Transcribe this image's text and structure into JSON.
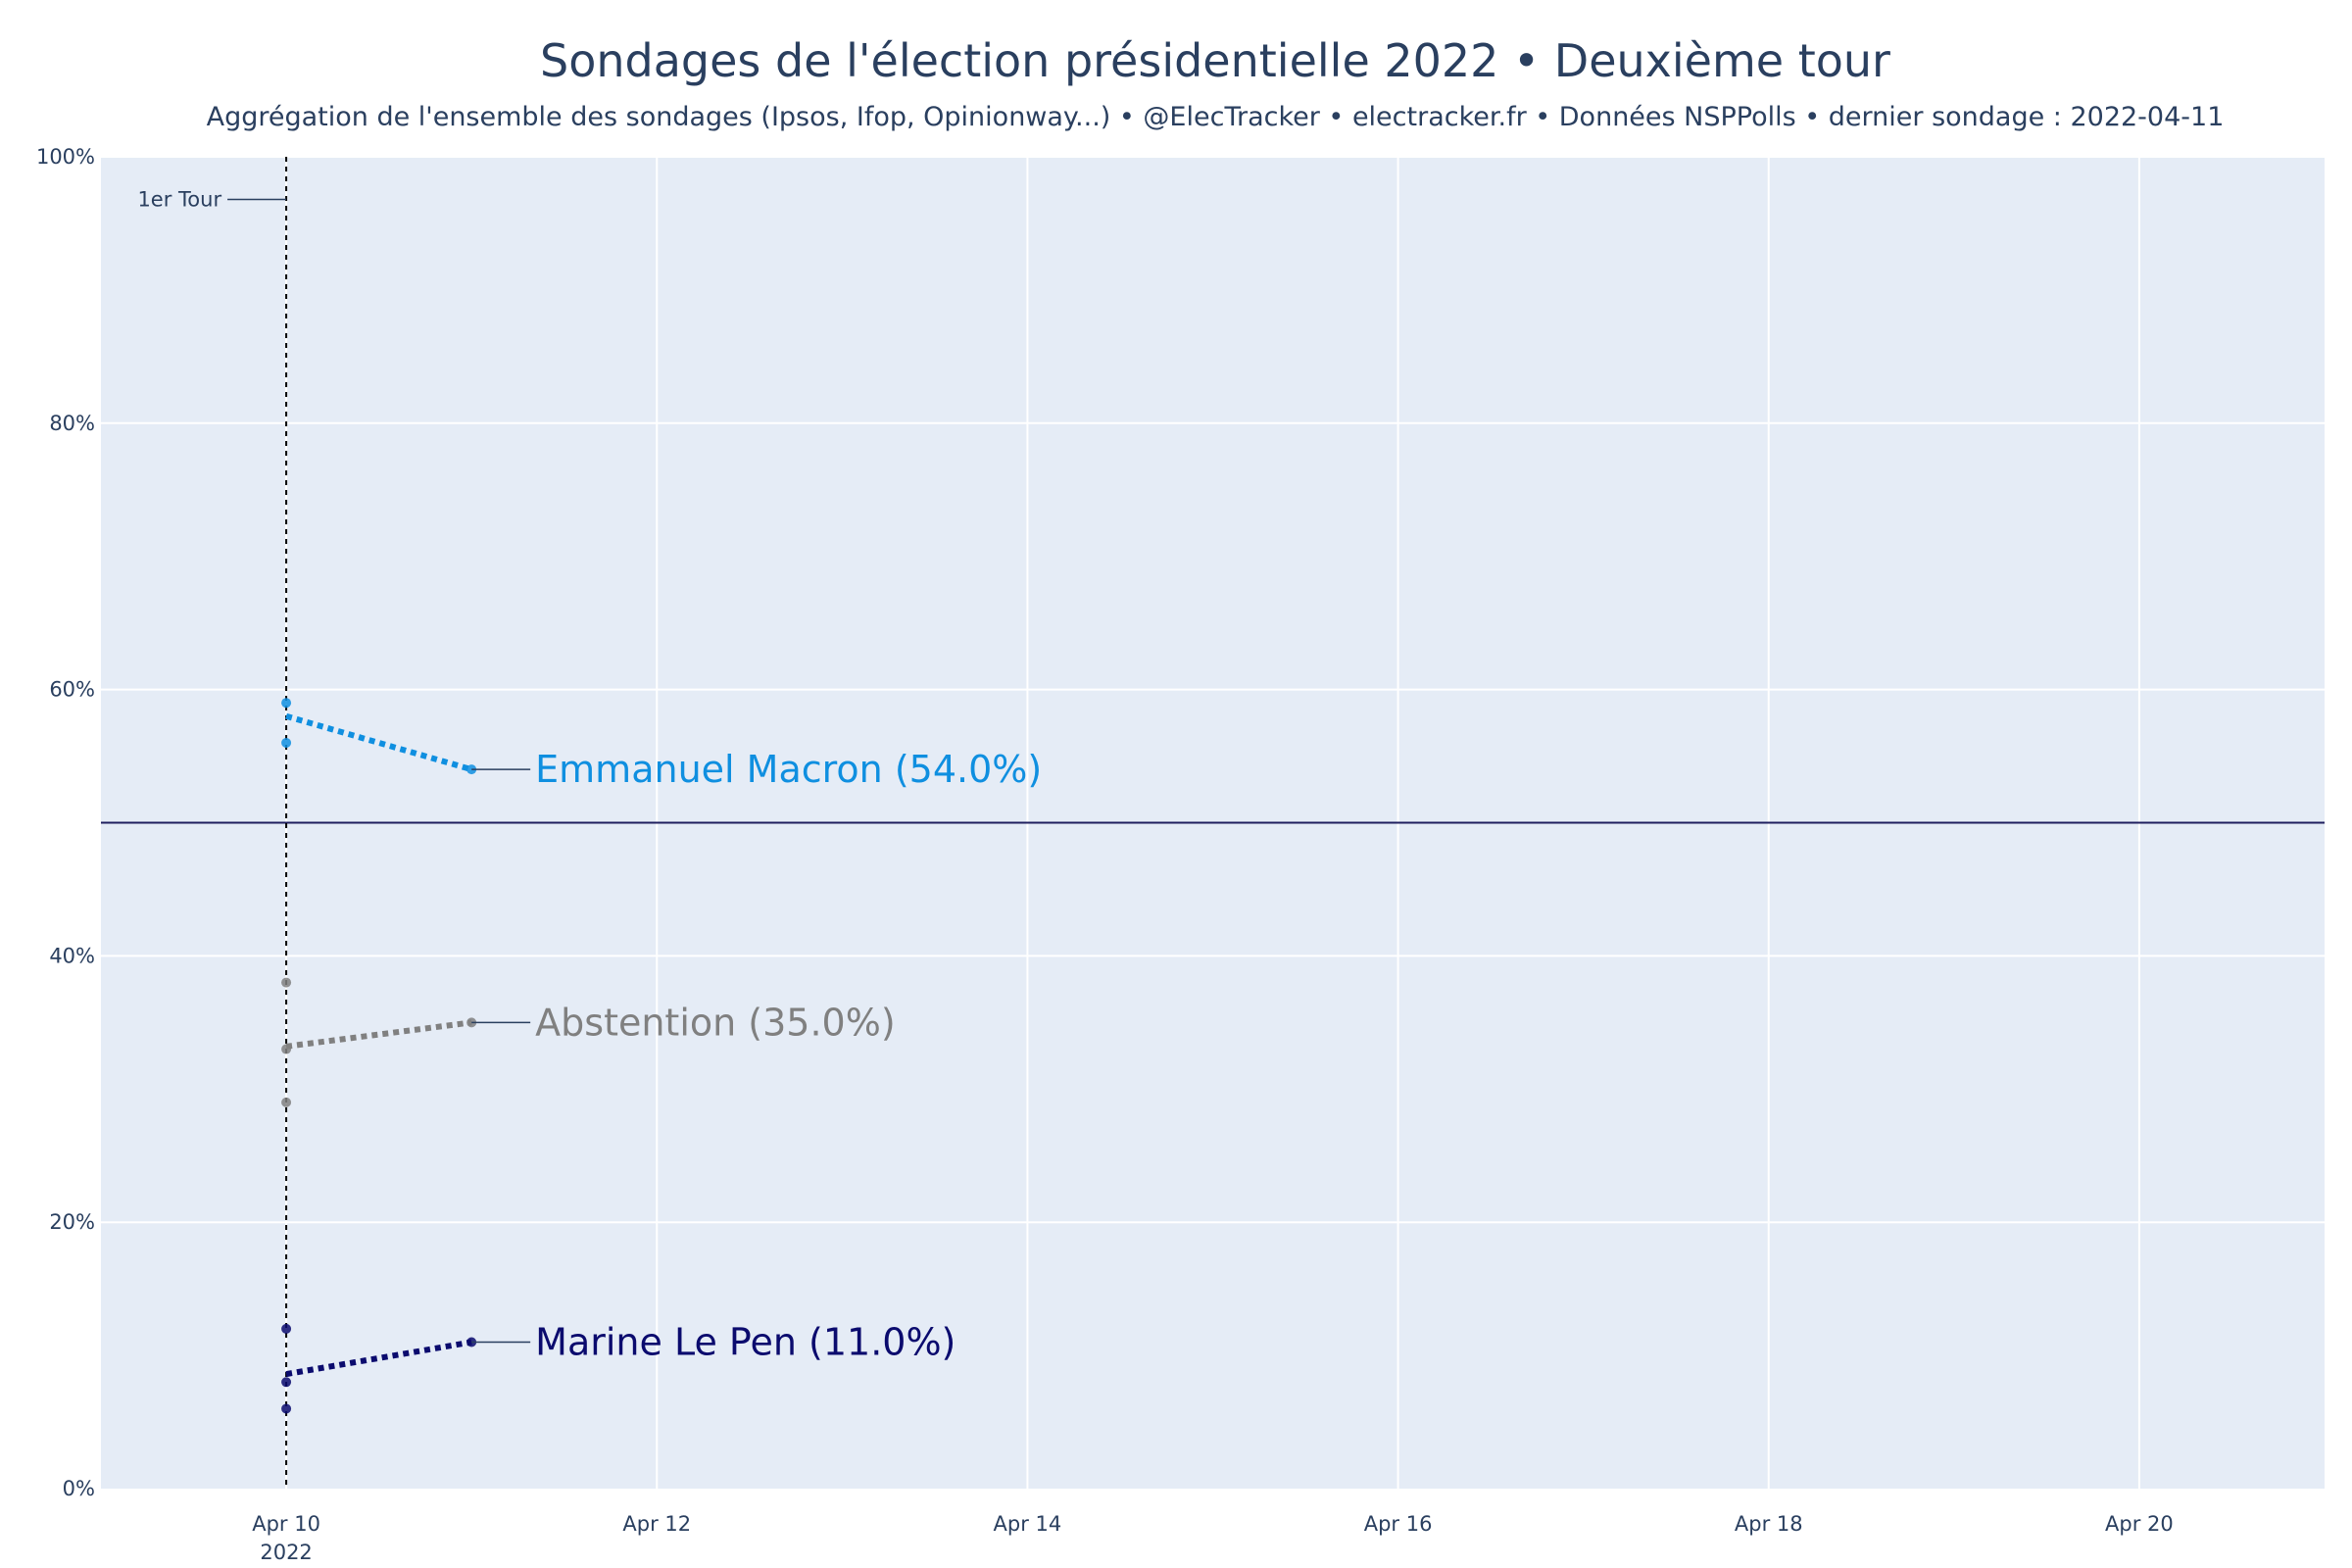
{
  "title": "Sondages de l'élection présidentielle 2022 • Deuxième tour",
  "subtitle": "Aggrégation de l'ensemble des sondages (Ipsos, Ifop, Opinionway...) • @ElecTracker • electracker.fr • Données NSPPolls • dernier sondage : 2022-04-11",
  "colors": {
    "plot_bg": "#e5ecf6",
    "grid": "#ffffff",
    "text": "#2a3f5f",
    "reference_line": "#1f1f5f"
  },
  "chart_data": {
    "type": "line",
    "x_range": [
      "2022-04-09",
      "2022-04-21"
    ],
    "ylim": [
      0,
      100
    ],
    "grid": true,
    "x_ticks": [
      {
        "date": "2022-04-10",
        "label": "Apr 10",
        "sublabel": "2022"
      },
      {
        "date": "2022-04-12",
        "label": "Apr 12",
        "sublabel": ""
      },
      {
        "date": "2022-04-14",
        "label": "Apr 14",
        "sublabel": ""
      },
      {
        "date": "2022-04-16",
        "label": "Apr 16",
        "sublabel": ""
      },
      {
        "date": "2022-04-18",
        "label": "Apr 18",
        "sublabel": ""
      },
      {
        "date": "2022-04-20",
        "label": "Apr 20",
        "sublabel": ""
      }
    ],
    "y_ticks": [
      {
        "value": 0,
        "label": "0%"
      },
      {
        "value": 20,
        "label": "20%"
      },
      {
        "value": 40,
        "label": "40%"
      },
      {
        "value": 60,
        "label": "60%"
      },
      {
        "value": 80,
        "label": "80%"
      },
      {
        "value": 100,
        "label": "100%"
      }
    ],
    "reference_line_y": 50,
    "first_round": {
      "date": "2022-04-10",
      "label": "1er Tour"
    },
    "series": [
      {
        "label": "Emmanuel Macron (54.0%)",
        "color": "#0f8fe0",
        "polls": [
          {
            "date": "2022-04-10",
            "value": 59
          },
          {
            "date": "2022-04-10",
            "value": 56
          },
          {
            "date": "2022-04-11",
            "value": 54
          }
        ],
        "trend": [
          {
            "date": "2022-04-10",
            "value": 58
          },
          {
            "date": "2022-04-11",
            "value": 54
          }
        ]
      },
      {
        "label": "Abstention (35.0%)",
        "color": "#808080",
        "polls": [
          {
            "date": "2022-04-10",
            "value": 38
          },
          {
            "date": "2022-04-10",
            "value": 33
          },
          {
            "date": "2022-04-10",
            "value": 29
          },
          {
            "date": "2022-04-11",
            "value": 35
          }
        ],
        "trend": [
          {
            "date": "2022-04-10",
            "value": 33.2
          },
          {
            "date": "2022-04-11",
            "value": 35
          }
        ]
      },
      {
        "label": "Marine Le Pen (11.0%)",
        "color": "#0b0b6e",
        "polls": [
          {
            "date": "2022-04-10",
            "value": 12
          },
          {
            "date": "2022-04-10",
            "value": 8
          },
          {
            "date": "2022-04-10",
            "value": 6
          },
          {
            "date": "2022-04-11",
            "value": 11
          }
        ],
        "trend": [
          {
            "date": "2022-04-10",
            "value": 8.6
          },
          {
            "date": "2022-04-11",
            "value": 11
          }
        ]
      }
    ]
  }
}
